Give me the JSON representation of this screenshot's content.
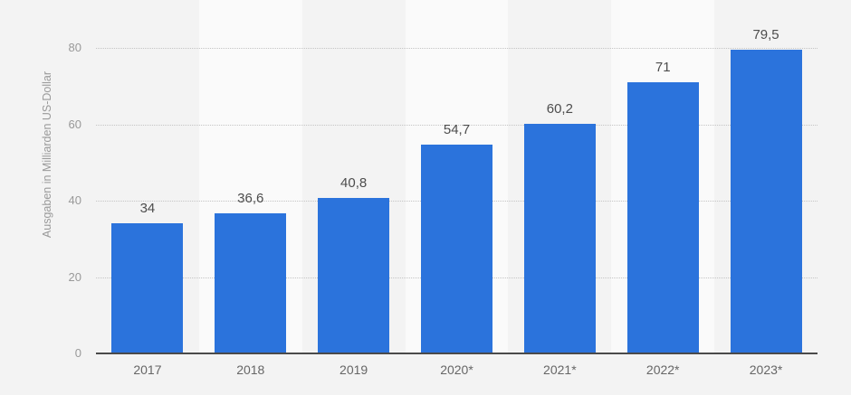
{
  "chart_data": {
    "type": "bar",
    "title": "",
    "categories": [
      "2017",
      "2018",
      "2019",
      "2020*",
      "2021*",
      "2022*",
      "2023*"
    ],
    "values": [
      34,
      36.6,
      40.8,
      54.7,
      60.2,
      71,
      79.5
    ],
    "value_labels": [
      "34",
      "36,6",
      "40,8",
      "54,7",
      "60,2",
      "71",
      "79,5"
    ],
    "xlabel": "",
    "ylabel": "Ausgaben in Milliarden US-Dollar",
    "ylim": [
      0,
      80
    ],
    "yticks": [
      0,
      20,
      40,
      60,
      80
    ],
    "grid": "horizontal-dotted",
    "legend": "none",
    "colors": {
      "bar": "#2b73dc",
      "background": "#f3f3f3",
      "alt_band": "#fafafa",
      "gridline": "#c4c4c4",
      "axis_line": "#4a4a4a",
      "value_label": "#4d4d4d",
      "x_label": "#666666",
      "y_tick": "#999999",
      "y_title": "#9a9a9a"
    }
  }
}
